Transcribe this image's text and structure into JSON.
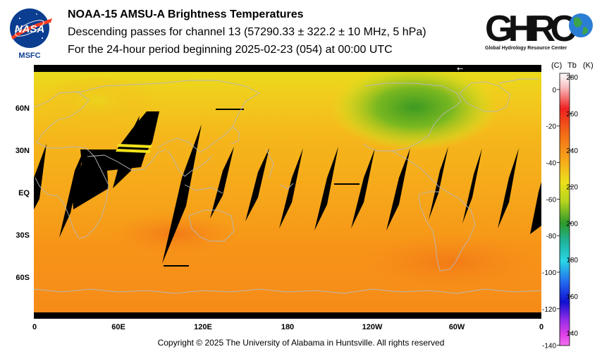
{
  "header": {
    "title": "NOAA-15 AMSU-A Brightness Temperatures",
    "subtitle": "Descending passes for channel 13 (57290.33 ± 322.2 ± 10 MHz, 5 hPa)",
    "period": "For the 24-hour period beginning 2025-02-23 (054) at 00:00 UTC"
  },
  "logos": {
    "nasa": {
      "wordmark": "NASA",
      "center": "MSFC"
    },
    "ghrc": {
      "wordmark": "GHRC",
      "tagline": "Global Hydrology Resource Center"
    }
  },
  "map": {
    "lat_labels": [
      "60N",
      "30N",
      "EQ",
      "30S",
      "60S"
    ],
    "lon_labels": [
      "0",
      "60E",
      "120E",
      "180",
      "120W",
      "60W",
      "0"
    ],
    "pointer": "←",
    "colors": {
      "no_data": "#000000",
      "coastline": "#b0b0b0"
    }
  },
  "colorbar": {
    "header_c": "(C)",
    "header_tb": "Tb",
    "header_k": "(K)",
    "celsius_ticks": [
      "0",
      "-20",
      "-40",
      "-60",
      "-80",
      "-100",
      "-120",
      "-140"
    ],
    "kelvin_ticks": [
      "280",
      "260",
      "240",
      "220",
      "200",
      "180",
      "160",
      "140"
    ],
    "range_k": [
      133,
      282
    ]
  },
  "footer": {
    "copyright": "Copyright © 2025 The University of Alabama in Huntsville.  All rights reserved"
  }
}
